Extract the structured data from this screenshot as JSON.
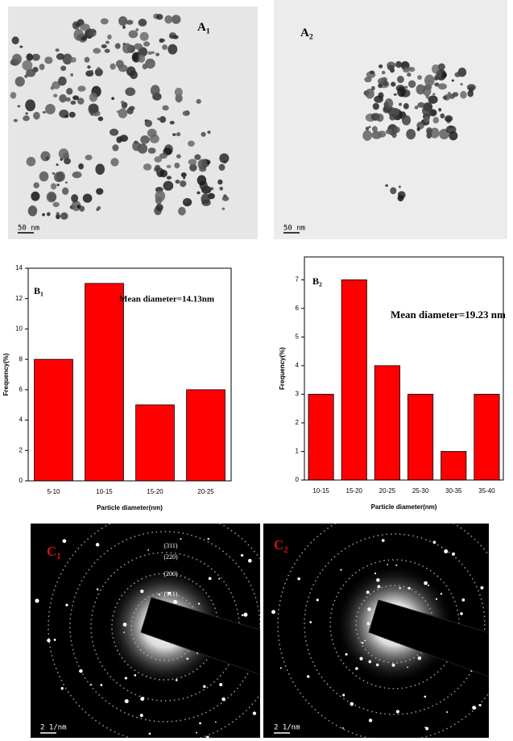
{
  "images": [
    {
      "label": "A",
      "label_sub": "1",
      "scale_bar": "50 nm"
    },
    {
      "label": "A",
      "label_sub": "2",
      "scale_bar": "50 nm"
    }
  ],
  "chart_data": [
    {
      "type": "bar",
      "title": "B",
      "title_sub": "1",
      "annotation": "Mean diameter=14.13nm",
      "x_label": "Particle diameter(nm)",
      "y_label": "Frequency(%)",
      "categories": [
        "5-10",
        "10-15",
        "15-20",
        "20-25"
      ],
      "values": [
        8,
        13,
        5,
        6
      ],
      "color": "#ff0000",
      "ylim": [
        0,
        14
      ],
      "yticks": [
        0,
        2,
        4,
        6,
        8,
        10,
        12,
        14
      ]
    },
    {
      "type": "bar",
      "title": "B",
      "title_sub": "2",
      "annotation": "Mean diameter=19.23 nm",
      "x_label": "Particle diameter(nm)",
      "y_label": "Frequency(%)",
      "categories": [
        "10-15",
        "15-20",
        "20-25",
        "25-30",
        "30-35",
        "35-40"
      ],
      "values": [
        3,
        7,
        4,
        3,
        1,
        3
      ],
      "color": "#ff0000",
      "ylim": [
        0,
        7.8
      ],
      "yticks": [
        0,
        1,
        2,
        3,
        4,
        5,
        6,
        7
      ]
    }
  ],
  "diffraction": [
    {
      "label": "C",
      "label_sub": "1",
      "scale_bar": "2 1/nm",
      "rings": [
        "(311)",
        "(220)",
        "(200)",
        "(111)"
      ]
    },
    {
      "label": "C",
      "label_sub": "2",
      "scale_bar": "2 1/nm"
    }
  ]
}
